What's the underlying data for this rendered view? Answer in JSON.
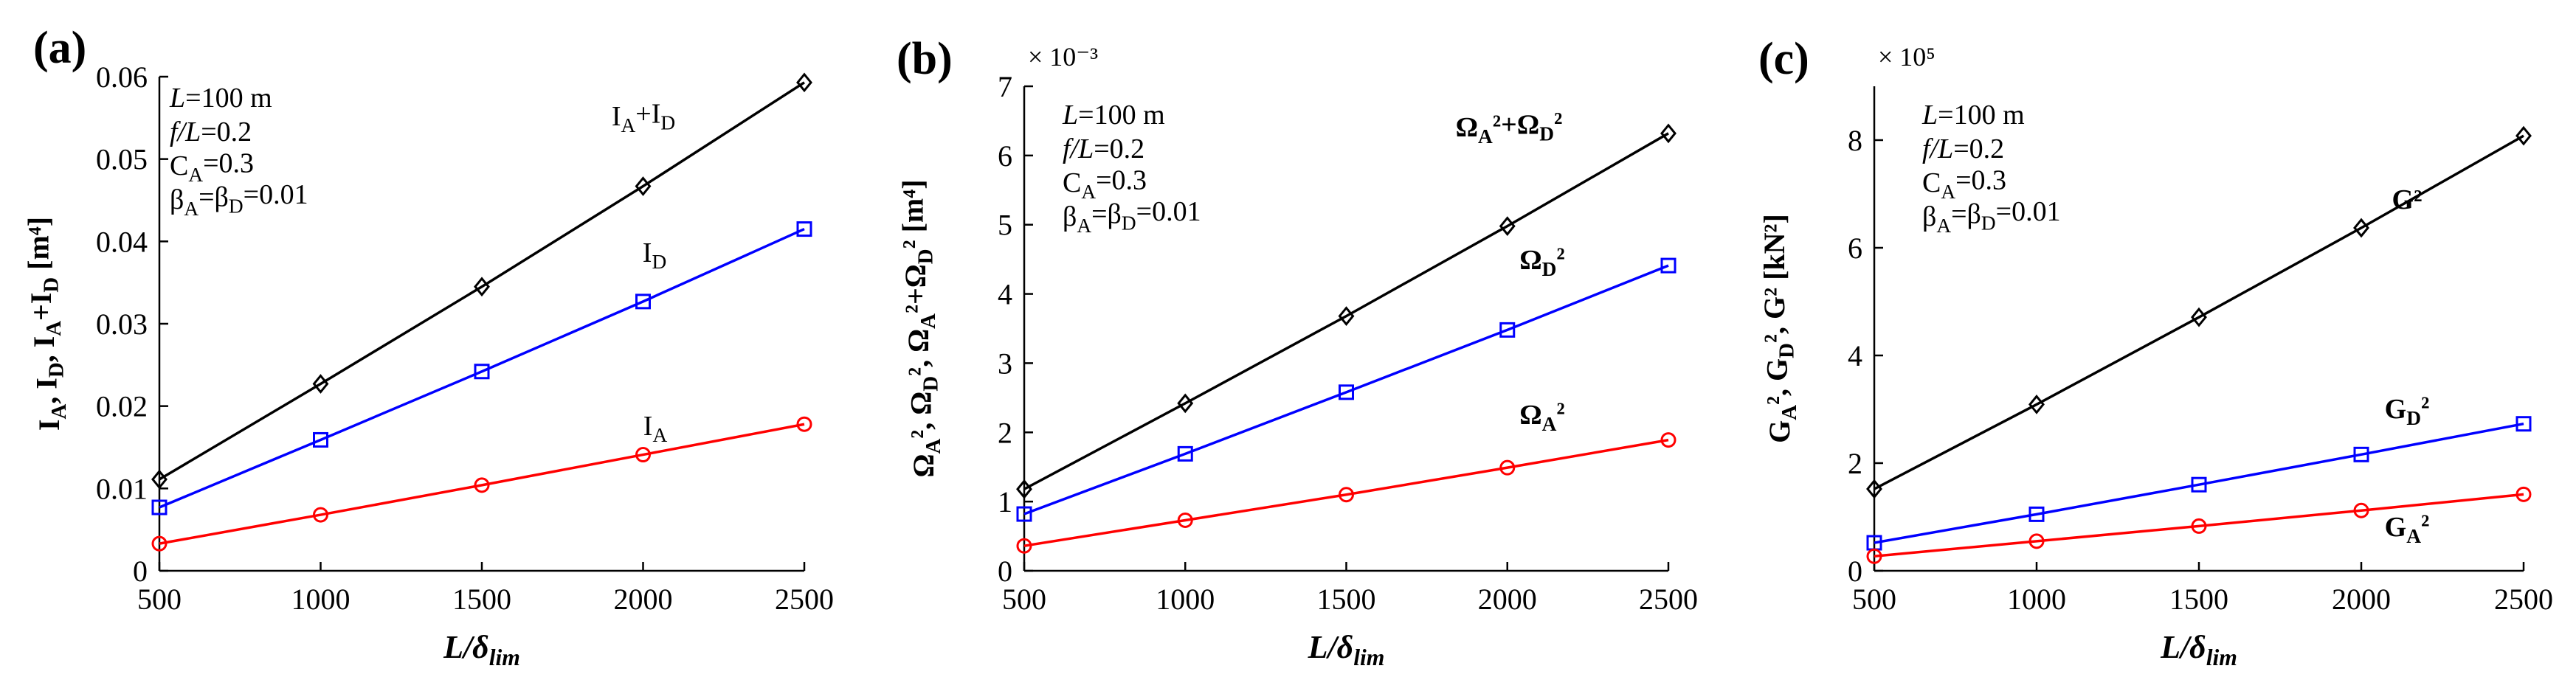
{
  "colors": {
    "black": "#000000",
    "blue": "#0000ff",
    "red": "#ff0000",
    "axis": "#000000"
  },
  "chart_data": [
    {
      "id": "a",
      "type": "line",
      "panel_label": "(a)",
      "xlabel": "L/δlim",
      "ylabel": "IA, ID, IA+ID [m⁴]",
      "x": [
        500,
        1000,
        1500,
        2000,
        2500
      ],
      "xlim": [
        500,
        2500
      ],
      "xticks": [
        "500",
        "1000",
        "1500",
        "2000",
        "2500"
      ],
      "ylim": [
        0,
        0.06
      ],
      "yticks": [
        "0",
        "0.01",
        "0.02",
        "0.03",
        "0.04",
        "0.05",
        "0.06"
      ],
      "multiplier": "",
      "annotation": [
        "L=100 m",
        "f/L=0.2",
        "CA=0.3",
        "βA=βD=0.01"
      ],
      "series": [
        {
          "name": "IA+ID",
          "label": "IA+ID",
          "color": "#000000",
          "marker": "diamond",
          "values": [
            0.0111,
            0.0227,
            0.0345,
            0.0467,
            0.0593
          ]
        },
        {
          "name": "ID",
          "label": "ID",
          "color": "#0000ff",
          "marker": "square",
          "values": [
            0.0077,
            0.0159,
            0.0242,
            0.0327,
            0.0415
          ]
        },
        {
          "name": "IA",
          "label": "IA",
          "color": "#ff0000",
          "marker": "circle",
          "values": [
            0.0033,
            0.0068,
            0.0104,
            0.0141,
            0.0178
          ]
        }
      ]
    },
    {
      "id": "b",
      "type": "line",
      "panel_label": "(b)",
      "xlabel": "L/δlim",
      "ylabel": "ΩA², ΩD², ΩA²+ΩD² [m⁴]",
      "x": [
        500,
        1000,
        1500,
        2000,
        2500
      ],
      "xlim": [
        500,
        2500
      ],
      "xticks": [
        "500",
        "1000",
        "1500",
        "2000",
        "2500"
      ],
      "ylim": [
        0,
        7
      ],
      "yticks": [
        "0",
        "1",
        "2",
        "3",
        "4",
        "5",
        "6",
        "7"
      ],
      "multiplier": "× 10⁻³",
      "annotation": [
        "L=100 m",
        "f/L=0.2",
        "CA=0.3",
        "βA=βD=0.01"
      ],
      "series": [
        {
          "name": "ΩA²+ΩD²",
          "label": "ΩA²+ΩD²",
          "color": "#000000",
          "marker": "diamond",
          "values": [
            1.18,
            2.42,
            3.68,
            4.98,
            6.32
          ]
        },
        {
          "name": "ΩD²",
          "label": "ΩD²",
          "color": "#0000ff",
          "marker": "square",
          "values": [
            0.82,
            1.69,
            2.58,
            3.48,
            4.41
          ]
        },
        {
          "name": "ΩA²",
          "label": "ΩA²",
          "color": "#ff0000",
          "marker": "circle",
          "values": [
            0.36,
            0.73,
            1.1,
            1.49,
            1.89
          ]
        }
      ]
    },
    {
      "id": "c",
      "type": "line",
      "panel_label": "(c)",
      "xlabel": "L/δlim",
      "ylabel": "GA², GD², G² [kN²]",
      "x": [
        500,
        1000,
        1500,
        2000,
        2500
      ],
      "xlim": [
        500,
        2500
      ],
      "xticks": [
        "500",
        "1000",
        "1500",
        "2000",
        "2500"
      ],
      "ylim": [
        0,
        9
      ],
      "yticks": [
        "0",
        "2",
        "4",
        "6",
        "8"
      ],
      "ytick_values": [
        0,
        2,
        4,
        6,
        8
      ],
      "multiplier": "× 10⁵",
      "annotation": [
        "L=100 m",
        "f/L=0.2",
        "CA=0.3",
        "βA=βD=0.01"
      ],
      "series": [
        {
          "name": "G²",
          "label": "G²",
          "color": "#000000",
          "marker": "diamond",
          "values": [
            1.52,
            3.09,
            4.71,
            6.37,
            8.08
          ]
        },
        {
          "name": "GD²",
          "label": "GD²",
          "color": "#0000ff",
          "marker": "square",
          "values": [
            0.52,
            1.05,
            1.6,
            2.16,
            2.73
          ]
        },
        {
          "name": "GA²",
          "label": "GA²",
          "color": "#ff0000",
          "marker": "circle",
          "values": [
            0.27,
            0.55,
            0.83,
            1.12,
            1.42
          ]
        }
      ]
    }
  ]
}
